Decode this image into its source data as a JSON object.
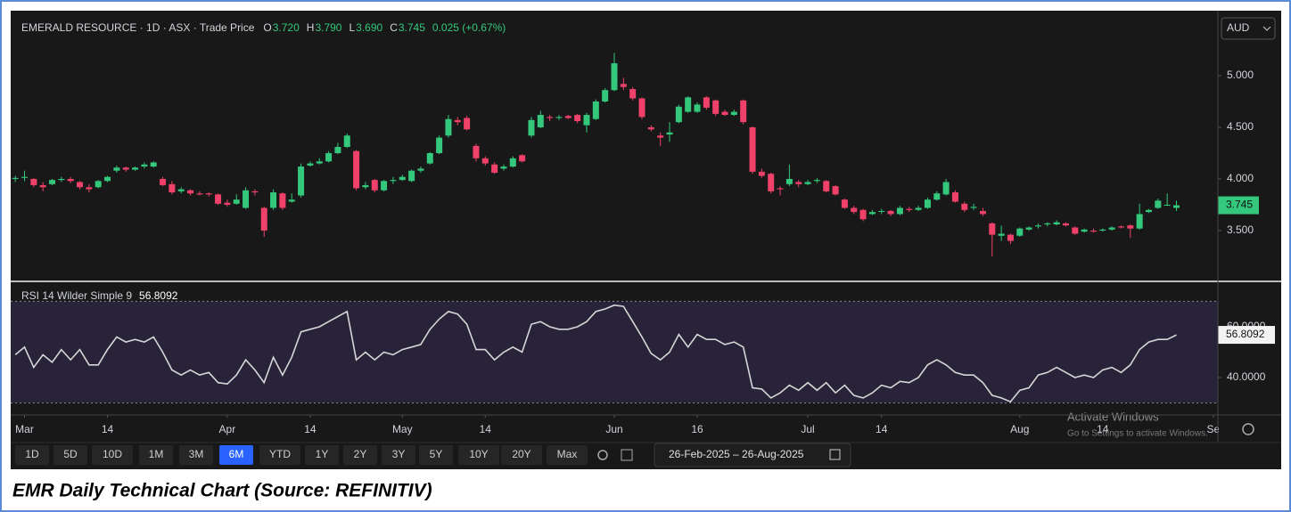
{
  "chart_data": [
    {
      "type": "candlestick",
      "title": "EMERALD RESOURCE · 1D · ASX · Trade Price",
      "legend": [
        {
          "label": "O",
          "value": "3.720"
        },
        {
          "label": "H",
          "value": "3.790"
        },
        {
          "label": "L",
          "value": "3.690"
        },
        {
          "label": "C",
          "value": "3.745"
        }
      ],
      "change": "0.025 (+0.67%)",
      "currency": "AUD",
      "last_label": "3.745",
      "up_color": "#34c87c",
      "down_color": "#f0416a",
      "xlim": [
        -0.5,
        130.5
      ],
      "ylim": [
        3.017,
        5.629
      ],
      "yticks": [
        {
          "value": 3.5,
          "label": "3.500"
        },
        {
          "value": 4,
          "label": "4.000"
        },
        {
          "value": 4.5,
          "label": "4.500"
        },
        {
          "value": 5,
          "label": "5.000"
        }
      ],
      "grid": false,
      "ohlc": [
        [
          4.0,
          4.03,
          3.97,
          4.01
        ],
        [
          4.01,
          4.08,
          3.98,
          4.02
        ],
        [
          4.0,
          4.01,
          3.92,
          3.94
        ],
        [
          3.94,
          3.97,
          3.88,
          3.92
        ],
        [
          3.95,
          4.0,
          3.94,
          3.99
        ],
        [
          3.99,
          4.02,
          3.97,
          4.0
        ],
        [
          4.0,
          4.02,
          3.96,
          3.98
        ],
        [
          3.97,
          3.98,
          3.9,
          3.92
        ],
        [
          3.92,
          3.95,
          3.87,
          3.9
        ],
        [
          3.92,
          3.99,
          3.91,
          3.98
        ],
        [
          3.98,
          4.03,
          3.97,
          4.02
        ],
        [
          4.08,
          4.13,
          4.06,
          4.11
        ],
        [
          4.11,
          4.12,
          4.07,
          4.09
        ],
        [
          4.09,
          4.12,
          4.08,
          4.11
        ],
        [
          4.12,
          4.16,
          4.1,
          4.14
        ],
        [
          4.12,
          4.17,
          4.11,
          4.16
        ],
        [
          4.0,
          4.02,
          3.93,
          3.94
        ],
        [
          3.95,
          3.98,
          3.85,
          3.87
        ],
        [
          3.88,
          3.92,
          3.86,
          3.9
        ],
        [
          3.89,
          3.9,
          3.84,
          3.86
        ],
        [
          3.86,
          3.88,
          3.84,
          3.85
        ],
        [
          3.86,
          3.87,
          3.83,
          3.85
        ],
        [
          3.85,
          3.86,
          3.75,
          3.76
        ],
        [
          3.77,
          3.8,
          3.73,
          3.75
        ],
        [
          3.76,
          3.85,
          3.75,
          3.8
        ],
        [
          3.72,
          3.92,
          3.71,
          3.89
        ],
        [
          3.88,
          3.9,
          3.84,
          3.87
        ],
        [
          3.72,
          3.73,
          3.44,
          3.5
        ],
        [
          3.72,
          3.9,
          3.7,
          3.87
        ],
        [
          3.86,
          3.87,
          3.7,
          3.72
        ],
        [
          3.78,
          3.86,
          3.77,
          3.8
        ],
        [
          3.84,
          4.15,
          3.82,
          4.12
        ],
        [
          4.13,
          4.17,
          4.12,
          4.15
        ],
        [
          4.15,
          4.2,
          4.14,
          4.17
        ],
        [
          4.17,
          4.27,
          4.16,
          4.25
        ],
        [
          4.25,
          4.35,
          4.24,
          4.31
        ],
        [
          4.31,
          4.44,
          4.3,
          4.42
        ],
        [
          4.27,
          4.28,
          3.89,
          3.91
        ],
        [
          3.92,
          3.97,
          3.9,
          3.94
        ],
        [
          3.99,
          4.0,
          3.87,
          3.89
        ],
        [
          3.89,
          3.99,
          3.88,
          3.98
        ],
        [
          3.98,
          4.02,
          3.95,
          3.99
        ],
        [
          3.99,
          4.04,
          3.98,
          4.02
        ],
        [
          3.98,
          4.09,
          3.97,
          4.08
        ],
        [
          4.08,
          4.12,
          4.06,
          4.1
        ],
        [
          4.15,
          4.26,
          4.14,
          4.25
        ],
        [
          4.25,
          4.42,
          4.24,
          4.4
        ],
        [
          4.42,
          4.62,
          4.4,
          4.58
        ],
        [
          4.57,
          4.6,
          4.52,
          4.55
        ],
        [
          4.59,
          4.61,
          4.47,
          4.48
        ],
        [
          4.32,
          4.34,
          4.17,
          4.2
        ],
        [
          4.2,
          4.22,
          4.13,
          4.15
        ],
        [
          4.14,
          4.16,
          4.05,
          4.06
        ],
        [
          4.1,
          4.14,
          4.08,
          4.12
        ],
        [
          4.12,
          4.22,
          4.11,
          4.2
        ],
        [
          4.23,
          4.24,
          4.16,
          4.17
        ],
        [
          4.42,
          4.6,
          4.4,
          4.57
        ],
        [
          4.5,
          4.66,
          4.49,
          4.62
        ],
        [
          4.6,
          4.62,
          4.56,
          4.59
        ],
        [
          4.59,
          4.62,
          4.57,
          4.6
        ],
        [
          4.61,
          4.62,
          4.58,
          4.59
        ],
        [
          4.62,
          4.63,
          4.54,
          4.56
        ],
        [
          4.52,
          4.64,
          4.45,
          4.62
        ],
        [
          4.58,
          4.77,
          4.57,
          4.75
        ],
        [
          4.75,
          4.88,
          4.74,
          4.86
        ],
        [
          4.86,
          5.22,
          4.85,
          5.12
        ],
        [
          4.92,
          4.98,
          4.86,
          4.89
        ],
        [
          4.87,
          4.89,
          4.76,
          4.78
        ],
        [
          4.78,
          4.79,
          4.58,
          4.6
        ],
        [
          4.5,
          4.52,
          4.46,
          4.48
        ],
        [
          4.42,
          4.45,
          4.32,
          4.4
        ],
        [
          4.43,
          4.55,
          4.36,
          4.45
        ],
        [
          4.55,
          4.72,
          4.54,
          4.7
        ],
        [
          4.65,
          4.8,
          4.64,
          4.79
        ],
        [
          4.65,
          4.74,
          4.64,
          4.72
        ],
        [
          4.79,
          4.8,
          4.67,
          4.69
        ],
        [
          4.76,
          4.77,
          4.61,
          4.63
        ],
        [
          4.65,
          4.67,
          4.61,
          4.62
        ],
        [
          4.62,
          4.67,
          4.61,
          4.65
        ],
        [
          4.76,
          4.77,
          4.53,
          4.55
        ],
        [
          4.5,
          4.51,
          4.05,
          4.07
        ],
        [
          4.07,
          4.1,
          4.01,
          4.03
        ],
        [
          4.05,
          4.06,
          3.86,
          3.88
        ],
        [
          3.91,
          3.93,
          3.84,
          3.9
        ],
        [
          3.95,
          4.14,
          3.93,
          4.0
        ],
        [
          3.97,
          3.99,
          3.92,
          3.95
        ],
        [
          3.95,
          3.99,
          3.94,
          3.97
        ],
        [
          3.98,
          4.01,
          3.96,
          3.99
        ],
        [
          3.98,
          3.99,
          3.87,
          3.88
        ],
        [
          3.93,
          3.94,
          3.84,
          3.85
        ],
        [
          3.8,
          3.81,
          3.71,
          3.72
        ],
        [
          3.72,
          3.74,
          3.66,
          3.68
        ],
        [
          3.7,
          3.71,
          3.59,
          3.61
        ],
        [
          3.66,
          3.7,
          3.65,
          3.68
        ],
        [
          3.69,
          3.71,
          3.66,
          3.69
        ],
        [
          3.69,
          3.7,
          3.64,
          3.66
        ],
        [
          3.66,
          3.74,
          3.65,
          3.72
        ],
        [
          3.71,
          3.73,
          3.68,
          3.7
        ],
        [
          3.7,
          3.74,
          3.69,
          3.72
        ],
        [
          3.72,
          3.82,
          3.71,
          3.8
        ],
        [
          3.8,
          3.88,
          3.79,
          3.86
        ],
        [
          3.85,
          4.0,
          3.84,
          3.97
        ],
        [
          3.87,
          3.89,
          3.77,
          3.78
        ],
        [
          3.76,
          3.78,
          3.68,
          3.7
        ],
        [
          3.72,
          3.76,
          3.7,
          3.73
        ],
        [
          3.69,
          3.72,
          3.64,
          3.66
        ],
        [
          3.57,
          3.58,
          3.25,
          3.46
        ],
        [
          3.45,
          3.55,
          3.4,
          3.47
        ],
        [
          3.46,
          3.47,
          3.37,
          3.4
        ],
        [
          3.45,
          3.53,
          3.44,
          3.52
        ],
        [
          3.51,
          3.54,
          3.5,
          3.53
        ],
        [
          3.54,
          3.57,
          3.52,
          3.55
        ],
        [
          3.56,
          3.58,
          3.54,
          3.57
        ],
        [
          3.56,
          3.6,
          3.55,
          3.58
        ],
        [
          3.57,
          3.58,
          3.54,
          3.55
        ],
        [
          3.53,
          3.54,
          3.46,
          3.47
        ],
        [
          3.49,
          3.52,
          3.48,
          3.51
        ],
        [
          3.5,
          3.52,
          3.48,
          3.49
        ],
        [
          3.5,
          3.52,
          3.49,
          3.51
        ],
        [
          3.51,
          3.54,
          3.5,
          3.53
        ],
        [
          3.54,
          3.55,
          3.52,
          3.53
        ],
        [
          3.55,
          3.56,
          3.43,
          3.52
        ],
        [
          3.52,
          3.76,
          3.51,
          3.66
        ],
        [
          3.68,
          3.71,
          3.67,
          3.7
        ],
        [
          3.72,
          3.81,
          3.71,
          3.79
        ],
        [
          3.75,
          3.86,
          3.74,
          3.75
        ],
        [
          3.72,
          3.79,
          3.69,
          3.745
        ]
      ]
    },
    {
      "type": "line",
      "title": "RSI 14 Wilder Simple 9",
      "value_label": "56.8092",
      "color": "#d6d6d6",
      "band": [
        30,
        70
      ],
      "band_color": "#29233a",
      "xlim": [
        -0.5,
        130.5
      ],
      "ylim": [
        25.3,
        77.5
      ],
      "yticks": [
        {
          "value": 40,
          "label": "40.0000"
        },
        {
          "value": 60,
          "label": "60.0000"
        }
      ],
      "xticks": [
        {
          "value": 1,
          "label": "Mar"
        },
        {
          "value": 10,
          "label": "14"
        },
        {
          "value": 23,
          "label": "Apr"
        },
        {
          "value": 32,
          "label": "14"
        },
        {
          "value": 42,
          "label": "May"
        },
        {
          "value": 51,
          "label": "14"
        },
        {
          "value": 65,
          "label": "Jun"
        },
        {
          "value": 74,
          "label": "16"
        },
        {
          "value": 86,
          "label": "Jul"
        },
        {
          "value": 94,
          "label": "14"
        },
        {
          "value": 109,
          "label": "Aug"
        },
        {
          "value": 118,
          "label": "14"
        },
        {
          "value": 130,
          "label": "Se"
        }
      ],
      "values": [
        49,
        52,
        44,
        49,
        46,
        51,
        47,
        51,
        45,
        45,
        51,
        56,
        54,
        55,
        54,
        56,
        50,
        43,
        41,
        43,
        41,
        42,
        38,
        37.5,
        41,
        47,
        43,
        38,
        48,
        41,
        48,
        58,
        59,
        60,
        62,
        64,
        66,
        47,
        50,
        47,
        50,
        49,
        51,
        52,
        53,
        59,
        63,
        66,
        65,
        61,
        51,
        51,
        47,
        50,
        52,
        50,
        61,
        62,
        60,
        59,
        59,
        60,
        62,
        66,
        67,
        68.5,
        68,
        62,
        56,
        49.5,
        47,
        50,
        57,
        52,
        57,
        55,
        55,
        53,
        54,
        52,
        36,
        35.5,
        32,
        34,
        37,
        35,
        38,
        35,
        38,
        34,
        37,
        33,
        32,
        34,
        37,
        36,
        38.5,
        38,
        40,
        45,
        47,
        45,
        42,
        41,
        41,
        38,
        33,
        32,
        30.5,
        35,
        36,
        41,
        42,
        44,
        42,
        40,
        41,
        40,
        43,
        44,
        42,
        45,
        51,
        54,
        55,
        55,
        56.8092
      ]
    }
  ],
  "toolbar": {
    "ranges": [
      "1D",
      "5D",
      "10D",
      "1M",
      "3M",
      "6M",
      "YTD",
      "1Y",
      "2Y",
      "3Y",
      "5Y",
      "10Y",
      "20Y",
      "Max"
    ],
    "active": "6M",
    "active_color": "#2962ff",
    "date_range": "26-Feb-2025  –  26-Aug-2025"
  },
  "watermark": {
    "title": "Activate Windows",
    "subtitle": "Go to Settings to activate Windows."
  },
  "caption": "EMR Daily Technical Chart (Source: REFINITIV)"
}
